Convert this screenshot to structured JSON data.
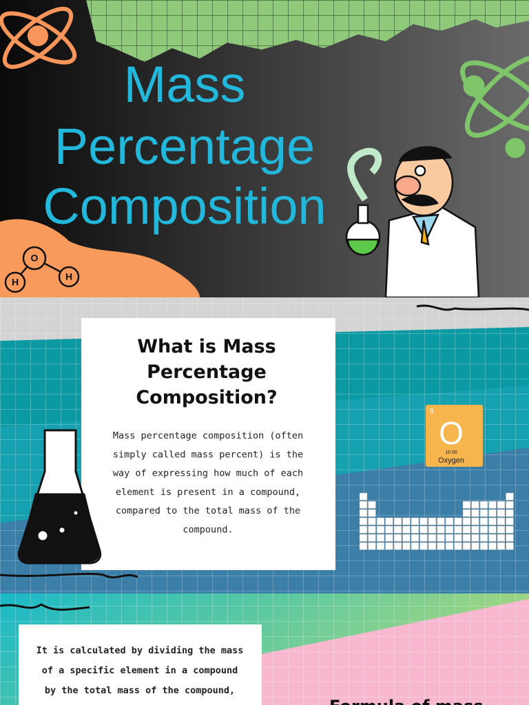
{
  "header": {
    "title_lines": [
      "Mass",
      "Percentage",
      "Composition"
    ],
    "molecule_labels": [
      "O",
      "H",
      "H"
    ]
  },
  "intro_card": {
    "heading_lines": [
      "What is Mass",
      "Percentage",
      "Composition?"
    ],
    "body_lines": [
      "Mass percentage composition (often",
      "simply called mass percent) is the",
      "way of expressing how much of each",
      "element is present in a compound,",
      "compared to the total mass of the",
      "compound."
    ]
  },
  "element_tile": {
    "number": "8",
    "symbol": "O",
    "mass": "16.00",
    "name": "Oxygen"
  },
  "calc_card": {
    "body_lines": [
      "It is calculated by dividing the mass",
      "of a specific element in a compound",
      "by the total mass of the compound,"
    ]
  },
  "next_heading": "Formula of mass"
}
